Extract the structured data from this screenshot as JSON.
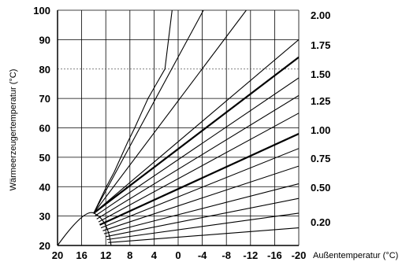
{
  "chart_data": {
    "type": "line",
    "xlabel": "Außentemperatur (°C)",
    "ylabel": "Wärmeerzeugertemperatur (°C)",
    "x_ticks": [
      20,
      16,
      12,
      8,
      4,
      0,
      -4,
      -8,
      -12,
      -16,
      -20
    ],
    "y_ticks": [
      20,
      30,
      40,
      50,
      60,
      70,
      80,
      90,
      100
    ],
    "xlim": [
      20,
      -20
    ],
    "ylim": [
      20,
      100
    ],
    "grid": true,
    "reference_line_y": 80,
    "right_labels": [
      "2.00",
      "1.75",
      "1.50",
      "1.25",
      "1.00",
      "0.75",
      "0.50",
      "0.20"
    ],
    "series": [
      {
        "name": "2.00",
        "bold": false,
        "x": [
          14,
          11.9,
          10.6,
          9.5,
          8.4,
          7.2,
          6.1,
          5.0,
          3.6,
          2.2,
          1.0
        ],
        "y": [
          31,
          40,
          45,
          50,
          55,
          60,
          65,
          70,
          75,
          80,
          100
        ]
      },
      {
        "name": "1.75",
        "bold": false,
        "x": [
          14,
          -4.2
        ],
        "y": [
          31,
          100
        ]
      },
      {
        "name": "",
        "bold": false,
        "x": [
          14,
          -11.3
        ],
        "y": [
          31,
          100
        ]
      },
      {
        "name": "1.50",
        "bold": false,
        "x": [
          14,
          -20
        ],
        "y": [
          31,
          90
        ]
      },
      {
        "name": "",
        "bold": true,
        "x": [
          14,
          -20
        ],
        "y": [
          31,
          84
        ]
      },
      {
        "name": "1.25",
        "bold": false,
        "x": [
          13.8,
          -20
        ],
        "y": [
          30,
          77
        ]
      },
      {
        "name": "",
        "bold": false,
        "x": [
          13.5,
          -20
        ],
        "y": [
          29,
          71
        ]
      },
      {
        "name": "1.00",
        "bold": false,
        "x": [
          13.2,
          -20
        ],
        "y": [
          28,
          65
        ]
      },
      {
        "name": "",
        "bold": true,
        "x": [
          13,
          -20
        ],
        "y": [
          27,
          58
        ]
      },
      {
        "name": "0.75",
        "bold": false,
        "x": [
          12.8,
          -20
        ],
        "y": [
          26,
          53
        ]
      },
      {
        "name": "",
        "bold": false,
        "x": [
          12.5,
          -20
        ],
        "y": [
          25,
          47
        ]
      },
      {
        "name": "0.50",
        "bold": false,
        "x": [
          12.3,
          -20
        ],
        "y": [
          24,
          41
        ]
      },
      {
        "name": "",
        "bold": false,
        "x": [
          12,
          -20
        ],
        "y": [
          23,
          36
        ]
      },
      {
        "name": "0.20",
        "bold": false,
        "x": [
          11.8,
          -20
        ],
        "y": [
          22,
          31
        ]
      },
      {
        "name": "",
        "bold": false,
        "x": [
          11.6,
          -20
        ],
        "y": [
          21,
          26
        ]
      }
    ]
  }
}
